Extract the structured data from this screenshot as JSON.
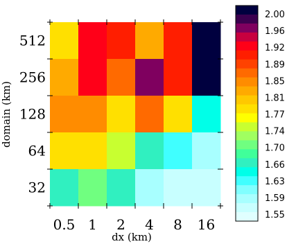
{
  "chart_data": {
    "type": "heatmap",
    "title": "",
    "xlabel": "dx (km)",
    "ylabel": "domain (km)",
    "x_categories": [
      "0.5",
      "1",
      "2",
      "4",
      "8",
      "16"
    ],
    "y_categories": [
      "512",
      "256",
      "128",
      "64",
      "32"
    ],
    "values": [
      [
        1.79,
        1.92,
        1.9,
        1.82,
        1.9,
        2.0
      ],
      [
        1.82,
        1.92,
        1.86,
        1.95,
        1.9,
        2.0
      ],
      [
        1.84,
        1.84,
        1.78,
        1.86,
        1.78,
        1.65
      ],
      [
        1.78,
        1.78,
        1.74,
        1.67,
        1.63,
        1.59
      ],
      [
        1.67,
        1.71,
        1.68,
        1.6,
        1.58,
        1.57
      ]
    ],
    "colorbar": {
      "levels": [
        "2.00",
        "1.96",
        "1.92",
        "1.89",
        "1.85",
        "1.81",
        "1.77",
        "1.74",
        "1.70",
        "1.66",
        "1.63",
        "1.59",
        "1.55"
      ],
      "colors": [
        "#00003f",
        "#3b004f",
        "#7f005f",
        "#c8003f",
        "#ff0018",
        "#ff1e00",
        "#ff4200",
        "#ff6a00",
        "#ff8c00",
        "#ffaa00",
        "#ffc800",
        "#ffe000",
        "#ffff00",
        "#c8ff30",
        "#a0ff60",
        "#70ff80",
        "#40ff9a",
        "#30f0c0",
        "#00ffe8",
        "#40ffff",
        "#80ffff",
        "#a8ffff",
        "#c8ffff",
        "#e0ffff"
      ]
    },
    "grid": false
  }
}
